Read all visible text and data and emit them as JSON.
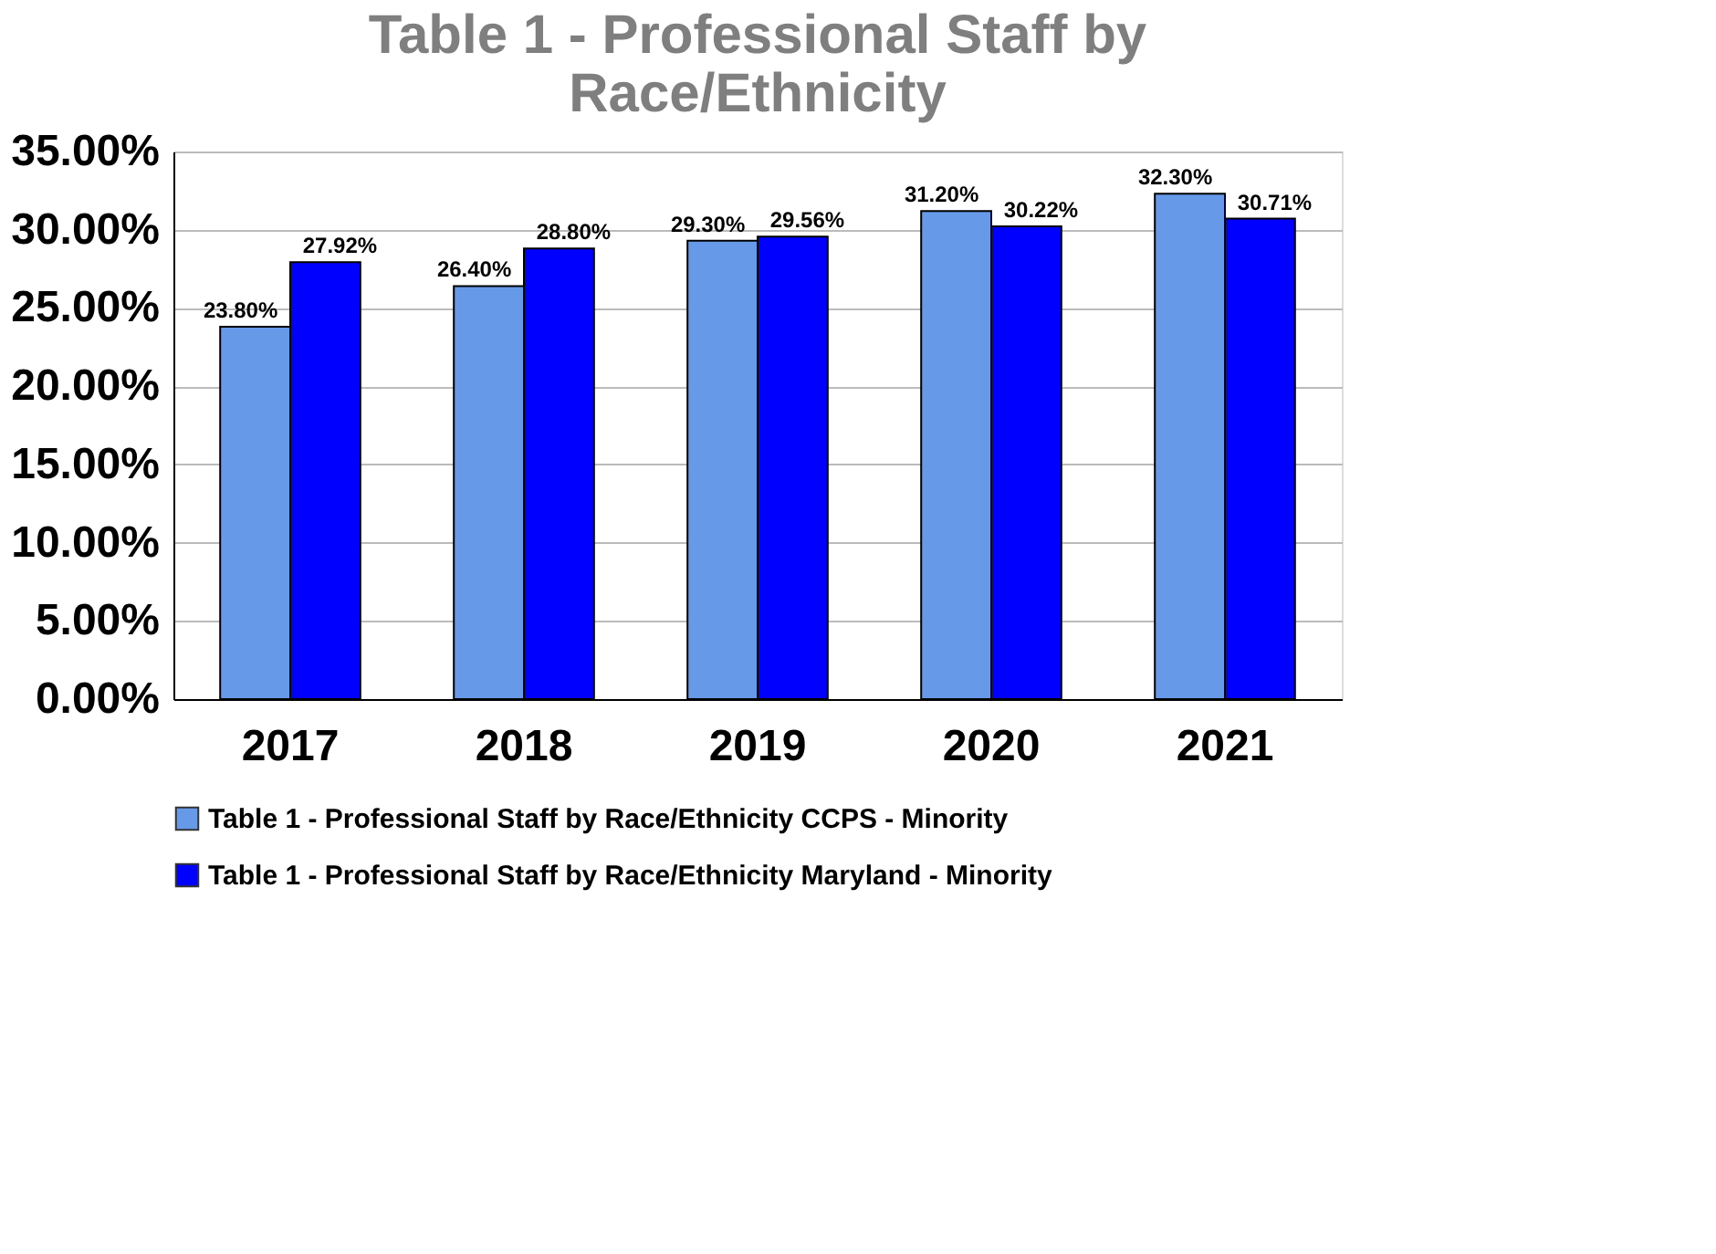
{
  "chart_data": {
    "type": "bar",
    "title": "Table 1 - Professional Staff by Race/Ethnicity",
    "categories": [
      "2017",
      "2018",
      "2019",
      "2020",
      "2021"
    ],
    "series": [
      {
        "name": "Table 1 - Professional Staff by Race/Ethnicity CCPS - Minority",
        "color": "#6699e8",
        "values": [
          23.8,
          26.4,
          29.3,
          31.2,
          32.3
        ],
        "value_labels": [
          "23.80%",
          "26.40%",
          "29.30%",
          "31.20%",
          "32.30%"
        ]
      },
      {
        "name": "Table 1 - Professional Staff by Race/Ethnicity Maryland - Minority",
        "color": "#0000ff",
        "values": [
          27.92,
          28.8,
          29.56,
          30.22,
          30.71
        ],
        "value_labels": [
          "27.92%",
          "28.80%",
          "29.56%",
          "30.22%",
          "30.71%"
        ]
      }
    ],
    "ylim": [
      0,
      35
    ],
    "yticks": [
      {
        "value": 0,
        "label": "0.00%"
      },
      {
        "value": 5,
        "label": "5.00%"
      },
      {
        "value": 10,
        "label": "10.00%"
      },
      {
        "value": 15,
        "label": "15.00%"
      },
      {
        "value": 20,
        "label": "20.00%"
      },
      {
        "value": 25,
        "label": "25.00%"
      },
      {
        "value": 30,
        "label": "30.00%"
      },
      {
        "value": 35,
        "label": "35.00%"
      }
    ],
    "grid": "y",
    "legend": "bottom"
  }
}
